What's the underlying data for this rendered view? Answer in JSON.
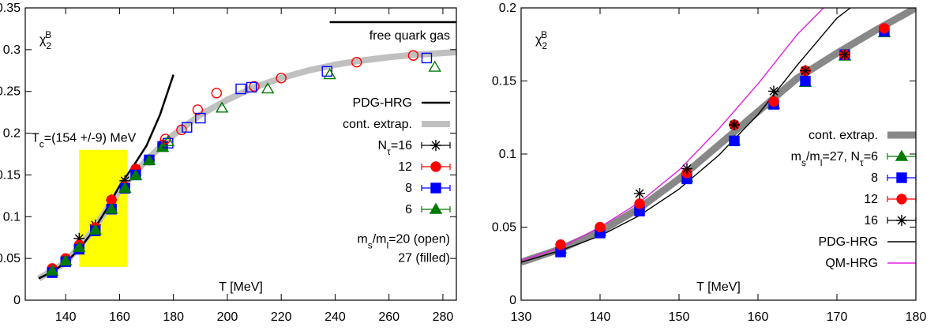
{
  "chart_data": [
    {
      "type": "line",
      "xlim": [
        125,
        285
      ],
      "ylim": [
        0,
        0.35
      ],
      "xticks": [
        140,
        160,
        180,
        200,
        220,
        240,
        260,
        280
      ],
      "yticks": [
        0,
        0.05,
        0.1,
        0.15,
        0.2,
        0.25,
        0.3,
        0.35
      ],
      "xlabel": "T [MeV]",
      "ylabel": [
        {
          "t": "χ"
        },
        {
          "t": "2",
          "shift": "sub"
        },
        {
          "t": "B",
          "shift": "super"
        }
      ],
      "annotation": {
        "text": [
          {
            "t": "T"
          },
          {
            "t": "c",
            "shift": "sub"
          },
          {
            "t": "=(154 +/-9) MeV"
          }
        ],
        "x": [
          145,
          163
        ],
        "y": [
          0.04,
          0.18
        ],
        "color": "#ffff00"
      },
      "series": [
        {
          "name": "PDG-HRG",
          "mode": "line",
          "color": "#000000",
          "x": [
            130,
            135,
            140,
            145,
            150,
            155,
            160,
            165,
            170,
            175,
            180
          ],
          "values": [
            0.026,
            0.034,
            0.045,
            0.061,
            0.082,
            0.108,
            0.137,
            0.16,
            0.185,
            0.222,
            0.27
          ]
        },
        {
          "name": "cont. extrap.",
          "mode": "band",
          "color": "#c0c0c0",
          "x": [
            130,
            140,
            150,
            160,
            170,
            180,
            190,
            200,
            210,
            220,
            230,
            240,
            250,
            260,
            270,
            280,
            285
          ],
          "values": [
            0.026,
            0.045,
            0.083,
            0.132,
            0.168,
            0.198,
            0.222,
            0.24,
            0.255,
            0.266,
            0.275,
            0.282,
            0.287,
            0.291,
            0.294,
            0.296,
            0.297
          ]
        },
        {
          "label": "free quark gas",
          "mode": "line",
          "color": "#000000",
          "x": [
            238,
            285
          ],
          "values": [
            0.333,
            0.333
          ]
        },
        {
          "name": [
            {
              "t": "N"
            },
            {
              "t": "τ",
              "shift": "sub"
            },
            {
              "t": "=16"
            }
          ],
          "mode": "marker",
          "marker": "star",
          "filled": true,
          "color": "#000000",
          "x": [
            145,
            151,
            157,
            162,
            166,
            171
          ],
          "values": [
            0.074,
            0.09,
            0.12,
            0.143,
            0.157,
            0.168
          ]
        },
        {
          "name": "12",
          "mode": "marker",
          "marker": "circle",
          "filled": true,
          "color": "#ff0000",
          "x": [
            135,
            140,
            145,
            151,
            157,
            162,
            166,
            171,
            176
          ],
          "values": [
            0.038,
            0.05,
            0.066,
            0.087,
            0.12,
            0.136,
            0.157,
            0.168,
            0.186
          ]
        },
        {
          "name": "8",
          "mode": "marker",
          "marker": "square",
          "filled": true,
          "color": "#0000ff",
          "x": [
            135,
            140,
            145,
            151,
            157,
            162,
            166,
            171,
            176
          ],
          "values": [
            0.033,
            0.046,
            0.061,
            0.083,
            0.109,
            0.134,
            0.15,
            0.168,
            0.184
          ]
        },
        {
          "name": "6",
          "mode": "marker",
          "marker": "triangle",
          "filled": true,
          "color": "#007a00",
          "x": [
            135,
            140,
            145,
            151,
            157,
            162,
            166,
            171,
            176
          ],
          "values": [
            0.035,
            0.047,
            0.063,
            0.084,
            0.109,
            0.134,
            0.149,
            0.167,
            0.183
          ]
        },
        {
          "mode": "marker",
          "marker": "circle",
          "filled": false,
          "color": "#ff0000",
          "x": [
            177,
            183,
            189,
            196,
            210,
            220,
            248,
            269
          ],
          "values": [
            0.193,
            0.204,
            0.228,
            0.248,
            0.256,
            0.266,
            0.285,
            0.293
          ]
        },
        {
          "mode": "marker",
          "marker": "square",
          "filled": false,
          "color": "#0000ff",
          "x": [
            178,
            185,
            190,
            205,
            209,
            237,
            274
          ],
          "values": [
            0.188,
            0.207,
            0.218,
            0.253,
            0.255,
            0.274,
            0.29
          ]
        },
        {
          "mode": "marker",
          "marker": "triangle",
          "filled": false,
          "color": "#007a00",
          "x": [
            178,
            198,
            215,
            238,
            277
          ],
          "values": [
            0.19,
            0.23,
            0.253,
            0.27,
            0.279
          ]
        }
      ],
      "notes": [
        [
          {
            "t": "m"
          },
          {
            "t": "s",
            "shift": "sub"
          },
          {
            "t": "/m"
          },
          {
            "t": "l",
            "shift": "sub"
          },
          {
            "t": "=20 (open)"
          }
        ],
        "27 (filled)"
      ]
    },
    {
      "type": "line",
      "xlim": [
        130,
        180
      ],
      "ylim": [
        0,
        0.2
      ],
      "xticks": [
        130,
        140,
        150,
        160,
        170,
        180
      ],
      "yticks": [
        0,
        0.05,
        0.1,
        0.15,
        0.2
      ],
      "xlabel": "T [MeV]",
      "ylabel": [
        {
          "t": "χ"
        },
        {
          "t": "2",
          "shift": "sub"
        },
        {
          "t": "B",
          "shift": "super"
        }
      ],
      "series": [
        {
          "name": "cont. extrap.",
          "mode": "band",
          "color": "#888888",
          "x": [
            130,
            135,
            140,
            145,
            150,
            155,
            160,
            165,
            170,
            175,
            180
          ],
          "values": [
            0.026,
            0.035,
            0.047,
            0.063,
            0.083,
            0.106,
            0.129,
            0.152,
            0.169,
            0.185,
            0.2
          ]
        },
        {
          "name": [
            {
              "t": "m"
            },
            {
              "t": "s",
              "shift": "sub"
            },
            {
              "t": "/m"
            },
            {
              "t": "l",
              "shift": "sub"
            },
            {
              "t": "=27, N"
            },
            {
              "t": "τ",
              "shift": "sub"
            },
            {
              "t": "=6"
            }
          ],
          "mode": "marker",
          "marker": "triangle",
          "filled": true,
          "color": "#007a00",
          "x": [
            135,
            140,
            145,
            151,
            157,
            162,
            166,
            171,
            176
          ],
          "values": [
            0.035,
            0.047,
            0.063,
            0.084,
            0.109,
            0.134,
            0.149,
            0.167,
            0.183
          ]
        },
        {
          "name": "8",
          "mode": "marker",
          "marker": "square",
          "filled": true,
          "color": "#0000ff",
          "x": [
            135,
            140,
            145,
            151,
            157,
            162,
            166,
            171,
            176
          ],
          "values": [
            0.033,
            0.046,
            0.061,
            0.083,
            0.109,
            0.134,
            0.15,
            0.168,
            0.184
          ]
        },
        {
          "name": "12",
          "mode": "marker",
          "marker": "circle",
          "filled": true,
          "color": "#ff0000",
          "x": [
            135,
            140,
            145,
            151,
            157,
            162,
            166,
            171,
            176
          ],
          "values": [
            0.038,
            0.05,
            0.066,
            0.087,
            0.12,
            0.136,
            0.157,
            0.168,
            0.186
          ]
        },
        {
          "name": "16",
          "mode": "marker",
          "marker": "star",
          "filled": true,
          "color": "#000000",
          "x": [
            145,
            151,
            157,
            162,
            166,
            171
          ],
          "values": [
            0.073,
            0.09,
            0.12,
            0.143,
            0.157,
            0.168
          ]
        },
        {
          "name": "PDG-HRG",
          "mode": "line",
          "color": "#000000",
          "x": [
            130,
            135,
            140,
            145,
            150,
            155,
            160,
            165,
            170,
            171.7
          ],
          "values": [
            0.026,
            0.034,
            0.044,
            0.058,
            0.076,
            0.099,
            0.127,
            0.161,
            0.193,
            0.2
          ]
        },
        {
          "name": "QM-HRG",
          "mode": "line",
          "color": "#e020e0",
          "x": [
            130,
            135,
            140,
            145,
            150,
            155,
            160,
            165,
            168.3
          ],
          "values": [
            0.027,
            0.036,
            0.05,
            0.067,
            0.089,
            0.117,
            0.148,
            0.182,
            0.2
          ]
        }
      ]
    }
  ]
}
